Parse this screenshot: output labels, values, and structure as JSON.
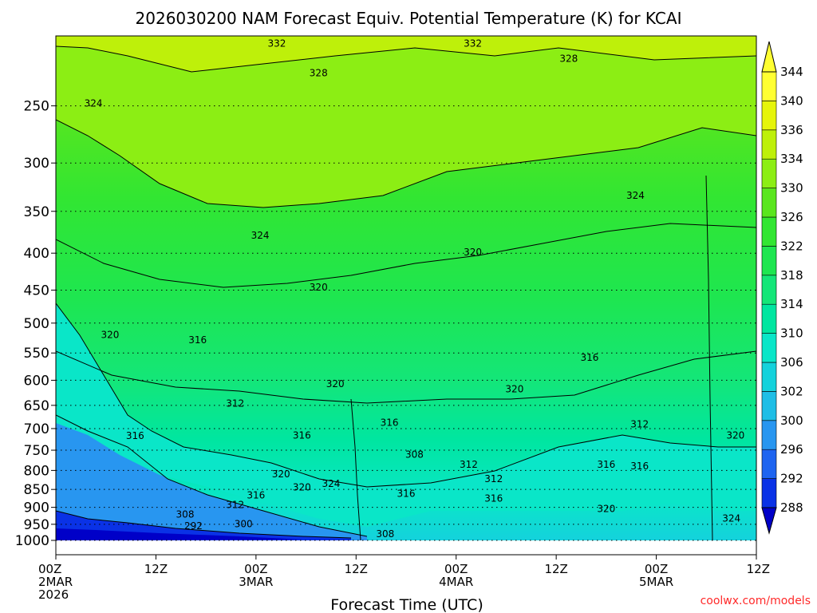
{
  "chart_data": {
    "type": "heatmap",
    "title": "2026030200 NAM Forecast Equiv. Potential Temperature (K) for KCAI",
    "xlabel": "Forecast Time (UTC)",
    "ylabel": "",
    "x_ticks": [
      {
        "value": 0,
        "lines": [
          "00Z",
          "2MAR",
          "2026"
        ]
      },
      {
        "value": 12,
        "lines": [
          "12Z"
        ]
      },
      {
        "value": 24,
        "lines": [
          "00Z",
          "3MAR"
        ]
      },
      {
        "value": 36,
        "lines": [
          "12Z"
        ]
      },
      {
        "value": 48,
        "lines": [
          "00Z",
          "4MAR"
        ]
      },
      {
        "value": 60,
        "lines": [
          "12Z"
        ]
      },
      {
        "value": 72,
        "lines": [
          "00Z",
          "5MAR"
        ]
      },
      {
        "value": 84,
        "lines": [
          "12Z"
        ]
      }
    ],
    "xlim": [
      0,
      84
    ],
    "y_ticks": [
      1000,
      950,
      900,
      850,
      800,
      750,
      700,
      650,
      600,
      550,
      500,
      450,
      400,
      350,
      300,
      250
    ],
    "ylim": [
      1000,
      200
    ],
    "y_scale": "log-pressure",
    "grid": true,
    "colorbar": {
      "levels": [
        288,
        292,
        296,
        300,
        302,
        306,
        310,
        314,
        318,
        322,
        326,
        330,
        334,
        336,
        340,
        344
      ],
      "colors": [
        "#0000c8",
        "#0a32e6",
        "#1e64f0",
        "#2896f0",
        "#1ebee6",
        "#14d2dc",
        "#0ae6c8",
        "#00e6a0",
        "#14e678",
        "#1ee650",
        "#32e632",
        "#5ae61e",
        "#8cee14",
        "#bef00a",
        "#e6f50a",
        "#ffff32"
      ]
    },
    "contour_labels": [
      {
        "text": "332",
        "x": 26.5,
        "y": 205
      },
      {
        "text": "332",
        "x": 50.0,
        "y": 205
      },
      {
        "text": "328",
        "x": 31.5,
        "y": 225
      },
      {
        "text": "328",
        "x": 61.5,
        "y": 215
      },
      {
        "text": "324",
        "x": 4.5,
        "y": 248
      },
      {
        "text": "324",
        "x": 24.5,
        "y": 378
      },
      {
        "text": "324",
        "x": 69.5,
        "y": 333
      },
      {
        "text": "320",
        "x": 50.0,
        "y": 399
      },
      {
        "text": "320",
        "x": 31.5,
        "y": 446
      },
      {
        "text": "320",
        "x": 6.5,
        "y": 519
      },
      {
        "text": "316",
        "x": 17.0,
        "y": 528
      },
      {
        "text": "316",
        "x": 64.0,
        "y": 558
      },
      {
        "text": "320",
        "x": 33.5,
        "y": 607
      },
      {
        "text": "320",
        "x": 55.0,
        "y": 617
      },
      {
        "text": "312",
        "x": 21.5,
        "y": 646
      },
      {
        "text": "316",
        "x": 40.0,
        "y": 687
      },
      {
        "text": "316",
        "x": 29.5,
        "y": 715
      },
      {
        "text": "312",
        "x": 70.0,
        "y": 690
      },
      {
        "text": "320",
        "x": 81.5,
        "y": 715
      },
      {
        "text": "316",
        "x": 9.5,
        "y": 716
      },
      {
        "text": "308",
        "x": 43.0,
        "y": 761
      },
      {
        "text": "312",
        "x": 49.5,
        "y": 785
      },
      {
        "text": "316",
        "x": 66.0,
        "y": 785
      },
      {
        "text": "316",
        "x": 70.0,
        "y": 789
      },
      {
        "text": "320",
        "x": 27.0,
        "y": 809
      },
      {
        "text": "324",
        "x": 33.0,
        "y": 835
      },
      {
        "text": "320",
        "x": 29.5,
        "y": 844
      },
      {
        "text": "312",
        "x": 52.5,
        "y": 822
      },
      {
        "text": "316",
        "x": 42.0,
        "y": 862
      },
      {
        "text": "316",
        "x": 24.0,
        "y": 866
      },
      {
        "text": "316",
        "x": 52.5,
        "y": 875
      },
      {
        "text": "312",
        "x": 21.5,
        "y": 893
      },
      {
        "text": "320",
        "x": 66.0,
        "y": 904
      },
      {
        "text": "308",
        "x": 15.5,
        "y": 920
      },
      {
        "text": "300",
        "x": 22.5,
        "y": 949
      },
      {
        "text": "292",
        "x": 16.5,
        "y": 955
      },
      {
        "text": "324",
        "x": 81.0,
        "y": 932
      },
      {
        "text": "308",
        "x": 39.5,
        "y": 980
      }
    ]
  },
  "credit": "coolwx.com/models"
}
